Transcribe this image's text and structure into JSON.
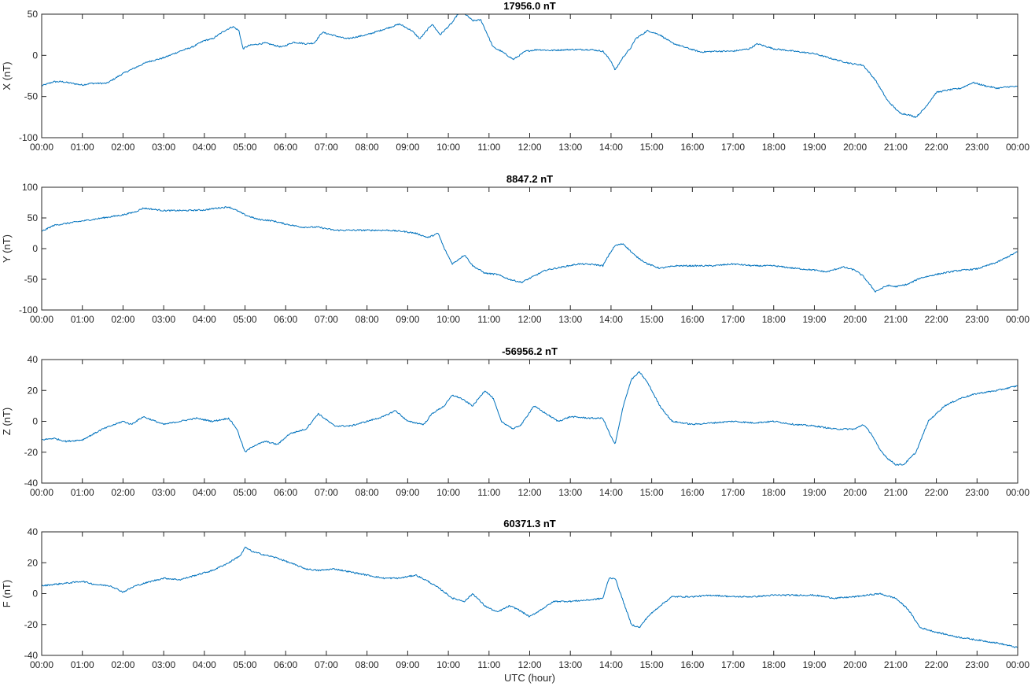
{
  "chart_data": [
    {
      "type": "line",
      "title": "17956.0 nT",
      "ylabel": "X (nT)",
      "xlabel": "",
      "xlim": [
        0,
        24
      ],
      "ylim": [
        -100,
        50
      ],
      "yticks": [
        -100,
        -50,
        0,
        50
      ],
      "xtick_labels": [
        "00:00",
        "01:00",
        "02:00",
        "03:00",
        "04:00",
        "05:00",
        "06:00",
        "07:00",
        "08:00",
        "09:00",
        "10:00",
        "11:00",
        "12:00",
        "13:00",
        "14:00",
        "15:00",
        "16:00",
        "17:00",
        "18:00",
        "19:00",
        "20:00",
        "21:00",
        "22:00",
        "23:00",
        "00:00"
      ],
      "x": [
        0,
        0.3,
        0.5,
        1,
        1.2,
        1.6,
        2,
        2.3,
        2.6,
        3,
        3.4,
        3.7,
        4,
        4.2,
        4.5,
        4.7,
        4.85,
        4.95,
        5.1,
        5.5,
        5.9,
        6.2,
        6.5,
        6.7,
        6.9,
        7.2,
        7.5,
        8,
        8.5,
        8.8,
        9.1,
        9.3,
        9.6,
        9.8,
        10.1,
        10.3,
        10.6,
        10.8,
        11.1,
        11.3,
        11.6,
        11.9,
        12.2,
        12.5,
        13,
        13.5,
        13.8,
        14.0,
        14.1,
        14.3,
        14.5,
        14.6,
        14.9,
        15.2,
        15.5,
        15.8,
        16.2,
        16.6,
        17,
        17.4,
        17.6,
        18,
        18.5,
        19,
        19.5,
        19.9,
        20.2,
        20.5,
        20.8,
        21.1,
        21.3,
        21.5,
        21.7,
        22.0,
        22.3,
        22.6,
        22.9,
        23.2,
        23.5,
        23.8,
        24
      ],
      "series": [
        {
          "color": "#0072BD",
          "values": [
            -37,
            -32,
            -32,
            -36,
            -34,
            -34,
            -22,
            -15,
            -8,
            -3,
            5,
            10,
            18,
            20,
            30,
            35,
            30,
            8,
            12,
            15,
            10,
            16,
            14,
            15,
            28,
            24,
            20,
            25,
            33,
            38,
            30,
            20,
            38,
            25,
            40,
            55,
            42,
            43,
            10,
            5,
            -5,
            5,
            7,
            6,
            7,
            7,
            5,
            -7,
            -18,
            -2,
            10,
            20,
            30,
            25,
            15,
            10,
            4,
            5,
            5,
            8,
            14,
            8,
            5,
            2,
            -5,
            -10,
            -12,
            -30,
            -55,
            -70,
            -72,
            -75,
            -65,
            -45,
            -42,
            -40,
            -33,
            -37,
            -40,
            -38,
            -38
          ]
        }
      ]
    },
    {
      "type": "line",
      "title": "8847.2 nT",
      "ylabel": "Y (nT)",
      "xlabel": "",
      "xlim": [
        0,
        24
      ],
      "ylim": [
        -100,
        100
      ],
      "yticks": [
        -100,
        -50,
        0,
        50,
        100
      ],
      "xtick_labels": [
        "00:00",
        "01:00",
        "02:00",
        "03:00",
        "04:00",
        "05:00",
        "06:00",
        "07:00",
        "08:00",
        "09:00",
        "10:00",
        "11:00",
        "12:00",
        "13:00",
        "14:00",
        "15:00",
        "16:00",
        "17:00",
        "18:00",
        "19:00",
        "20:00",
        "21:00",
        "22:00",
        "23:00",
        "00:00"
      ],
      "x": [
        0,
        0.3,
        0.7,
        1,
        1.5,
        2,
        2.3,
        2.5,
        3,
        3.5,
        4,
        4.3,
        4.6,
        4.8,
        5.0,
        5.3,
        5.7,
        6,
        6.4,
        6.8,
        7.2,
        7.6,
        8,
        8.5,
        8.9,
        9.2,
        9.5,
        9.75,
        9.9,
        10.1,
        10.4,
        10.6,
        10.9,
        11.2,
        11.5,
        11.8,
        12.1,
        12.4,
        12.8,
        13.2,
        13.6,
        13.8,
        13.95,
        14.1,
        14.3,
        14.6,
        14.9,
        15.2,
        15.6,
        16,
        16.5,
        17,
        17.5,
        18,
        18.5,
        19,
        19.3,
        19.7,
        20,
        20.2,
        20.5,
        20.8,
        21,
        21.3,
        21.6,
        22,
        22.5,
        23,
        23.5,
        24
      ],
      "series": [
        {
          "color": "#0072BD",
          "values": [
            28,
            38,
            42,
            45,
            50,
            55,
            60,
            66,
            62,
            62,
            63,
            66,
            68,
            62,
            55,
            48,
            45,
            40,
            35,
            35,
            30,
            30,
            30,
            30,
            28,
            25,
            18,
            25,
            0,
            -25,
            -10,
            -28,
            -40,
            -42,
            -50,
            -55,
            -45,
            -35,
            -30,
            -25,
            -26,
            -28,
            -10,
            5,
            8,
            -12,
            -25,
            -32,
            -28,
            -28,
            -28,
            -25,
            -28,
            -28,
            -32,
            -35,
            -38,
            -30,
            -35,
            -45,
            -70,
            -60,
            -62,
            -58,
            -48,
            -42,
            -36,
            -33,
            -22,
            -5
          ]
        }
      ]
    },
    {
      "type": "line",
      "title": "-56956.2 nT",
      "ylabel": "Z (nT)",
      "xlabel": "",
      "xlim": [
        0,
        24
      ],
      "ylim": [
        -40,
        40
      ],
      "yticks": [
        -40,
        -20,
        0,
        20,
        40
      ],
      "xtick_labels": [
        "00:00",
        "01:00",
        "02:00",
        "03:00",
        "04:00",
        "05:00",
        "06:00",
        "07:00",
        "08:00",
        "09:00",
        "10:00",
        "11:00",
        "12:00",
        "13:00",
        "14:00",
        "15:00",
        "16:00",
        "17:00",
        "18:00",
        "19:00",
        "20:00",
        "21:00",
        "22:00",
        "23:00",
        "00:00"
      ],
      "x": [
        0,
        0.3,
        0.6,
        1,
        1.5,
        2,
        2.2,
        2.5,
        3,
        3.4,
        3.8,
        4.2,
        4.6,
        4.8,
        5.0,
        5.2,
        5.5,
        5.8,
        6.1,
        6.5,
        6.8,
        7.2,
        7.6,
        8,
        8.4,
        8.7,
        9.0,
        9.4,
        9.6,
        9.9,
        10.1,
        10.3,
        10.6,
        10.9,
        11.1,
        11.3,
        11.6,
        11.8,
        12.1,
        12.4,
        12.7,
        13,
        13.5,
        13.8,
        14.0,
        14.1,
        14.3,
        14.5,
        14.7,
        14.9,
        15.2,
        15.5,
        16,
        16.5,
        17,
        17.5,
        18,
        18.5,
        19,
        19.5,
        20,
        20.2,
        20.4,
        20.6,
        20.8,
        21.0,
        21.2,
        21.5,
        21.8,
        22.2,
        22.6,
        23,
        23.5,
        24
      ],
      "series": [
        {
          "color": "#0072BD",
          "values": [
            -12,
            -11,
            -13,
            -12,
            -5,
            0,
            -2,
            3,
            -2,
            0,
            2,
            0,
            2,
            -5,
            -20,
            -16,
            -13,
            -15,
            -8,
            -5,
            5,
            -3,
            -3,
            0,
            3,
            7,
            0,
            -2,
            5,
            10,
            17,
            15,
            10,
            20,
            15,
            0,
            -5,
            -2,
            10,
            5,
            0,
            3,
            2,
            2,
            -10,
            -15,
            10,
            27,
            32,
            25,
            10,
            0,
            -2,
            -1,
            0,
            -1,
            0,
            -2,
            -3,
            -5,
            -5,
            -2,
            -8,
            -18,
            -24,
            -28,
            -28,
            -20,
            0,
            10,
            15,
            18,
            20,
            23
          ]
        }
      ]
    },
    {
      "type": "line",
      "title": "60371.3 nT",
      "ylabel": "F (nT)",
      "xlabel": "UTC (hour)",
      "xlim": [
        0,
        24
      ],
      "ylim": [
        -40,
        40
      ],
      "yticks": [
        -40,
        -20,
        0,
        20,
        40
      ],
      "xtick_labels": [
        "00:00",
        "01:00",
        "02:00",
        "03:00",
        "04:00",
        "05:00",
        "06:00",
        "07:00",
        "08:00",
        "09:00",
        "10:00",
        "11:00",
        "12:00",
        "13:00",
        "14:00",
        "15:00",
        "16:00",
        "17:00",
        "18:00",
        "19:00",
        "20:00",
        "21:00",
        "22:00",
        "23:00",
        "00:00"
      ],
      "x": [
        0,
        0.3,
        0.7,
        1,
        1.3,
        1.7,
        2,
        2.3,
        2.7,
        3,
        3.4,
        3.8,
        4.2,
        4.6,
        4.9,
        5.0,
        5.2,
        5.5,
        5.8,
        6.1,
        6.5,
        6.8,
        7.2,
        7.6,
        8,
        8.4,
        8.8,
        9.2,
        9.5,
        9.8,
        10.1,
        10.4,
        10.6,
        10.9,
        11.2,
        11.5,
        11.7,
        12,
        12.3,
        12.6,
        13,
        13.5,
        13.8,
        13.95,
        14.1,
        14.3,
        14.5,
        14.7,
        14.9,
        15.2,
        15.5,
        16,
        16.5,
        17,
        17.5,
        18,
        18.5,
        19,
        19.5,
        20,
        20.3,
        20.6,
        21,
        21.3,
        21.6,
        22,
        22.5,
        23,
        23.5,
        24
      ],
      "series": [
        {
          "color": "#0072BD",
          "values": [
            5,
            6,
            7,
            8,
            6,
            5,
            1,
            5,
            8,
            10,
            9,
            12,
            15,
            20,
            25,
            30,
            27,
            25,
            23,
            20,
            16,
            15,
            16,
            14,
            12,
            10,
            10,
            12,
            8,
            3,
            -3,
            -5,
            0,
            -8,
            -12,
            -8,
            -10,
            -15,
            -10,
            -5,
            -5,
            -4,
            -3,
            10,
            10,
            -5,
            -20,
            -22,
            -15,
            -8,
            -2,
            -2,
            -1,
            -2,
            -2,
            -1,
            -1,
            -1,
            -3,
            -2,
            -1,
            0,
            -3,
            -10,
            -22,
            -25,
            -28,
            -30,
            -32,
            -35
          ]
        }
      ]
    }
  ]
}
